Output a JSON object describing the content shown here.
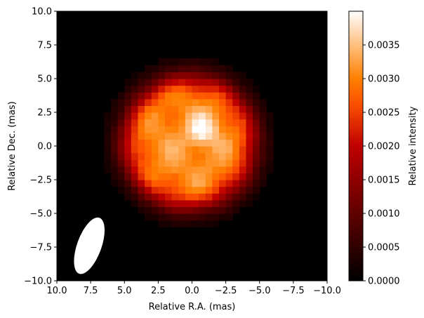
{
  "chart_data": {
    "type": "heatmap",
    "xlabel": "Relative R.A. (mas)",
    "ylabel": "Relative Dec. (mas)",
    "colorbar_label": "Relative intensity",
    "colormap": "gist_heat",
    "background": "#000000",
    "xlim": [
      10.0,
      -10.0
    ],
    "ylim": [
      -10.0,
      10.0
    ],
    "x_ticks": [
      10.0,
      7.5,
      5.0,
      2.5,
      0.0,
      -2.5,
      -5.0,
      -7.5,
      -10.0
    ],
    "x_tick_labels": [
      "10.0",
      "7.5",
      "5.0",
      "2.5",
      "0.0",
      "−2.5",
      "−5.0",
      "−7.5",
      "−10.0"
    ],
    "y_ticks": [
      10.0,
      7.5,
      5.0,
      2.5,
      0.0,
      -2.5,
      -5.0,
      -7.5,
      -10.0
    ],
    "y_tick_labels": [
      "10.0",
      "7.5",
      "5.0",
      "2.5",
      "0.0",
      "−2.5",
      "−5.0",
      "−7.5",
      "−10.0"
    ],
    "colorbar_range": [
      0.0,
      0.004
    ],
    "colorbar_ticks": [
      0.0,
      0.0005,
      0.001,
      0.0015,
      0.002,
      0.0025,
      0.003,
      0.0035
    ],
    "colorbar_tick_labels": [
      "0.0000",
      "0.0005",
      "0.0010",
      "0.0015",
      "0.0020",
      "0.0025",
      "0.0030",
      "0.0035"
    ],
    "source": {
      "center_x": 0.2,
      "center_y": 0.3,
      "radius": 4.8,
      "peak_intensity": 0.00395,
      "peak_x": -0.8,
      "peak_y": 1.2
    },
    "beam": {
      "center_x": 7.6,
      "center_y": -7.4,
      "major_axis": 4.4,
      "minor_axis": 1.8,
      "position_angle_deg": 20,
      "color": "#ffffff"
    }
  }
}
